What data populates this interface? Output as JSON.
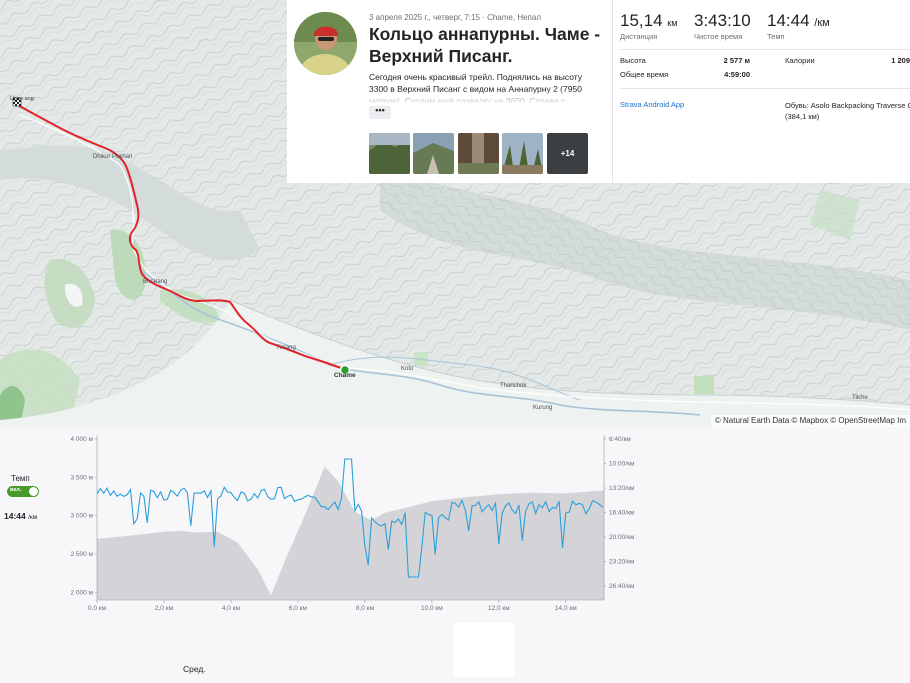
{
  "map": {
    "attribution": "© Natural Earth Data © Mapbox © OpenStreetMap Im",
    "places": [
      "Dhikur Pokhari",
      "Bhratang",
      "Thanchok",
      "Kurung",
      "Koto",
      "Chame",
      "Tilche",
      "Timang"
    ],
    "start_label": "Uppe   ang",
    "end_label": "Chame",
    "route_color": "#e3232c",
    "end_marker_color": "#2ca02c"
  },
  "activity": {
    "meta": "3 апреля 2025 г., четверг, 7:15 · Chame, Непал",
    "title": "Кольцо аннапурны. Чаме - Верхний Писанг.",
    "description": "Сегодня очень красивый трейл. Поднялись на высоту 3300 в Верхний Писанг с видом на Аннапурну 2 (7950 метров). Сходим ещё разведку на 3600. Справа с",
    "more_button": "•••",
    "photos_more": "+14"
  },
  "stats": {
    "distance_value": "15,14",
    "distance_unit": "км",
    "distance_label": "Дистанция",
    "moving_time_value": "3:43:10",
    "moving_time_label": "Чистое время",
    "pace_value": "14:44",
    "pace_unit": "/км",
    "pace_label": "Темп",
    "elevation_label": "Высота",
    "elevation_value": "2 577 м",
    "calories_label": "Калории",
    "calories_value": "1 209",
    "elapsed_label": "Общее время",
    "elapsed_value": "4:59:00",
    "device": "Strava Android App",
    "shoes": "Обувь: Asolo Backpacking Traverse G (384,1 км)"
  },
  "chart_controls": {
    "pace_toggle_label": "Темп",
    "toggle_state": "вкл.",
    "pace_readout": "14:44",
    "pace_readout_unit": "/км",
    "avg_label": "Сред."
  },
  "chart_data": {
    "type": "area",
    "x_unit": "км",
    "x_ticks": [
      "0,0 км",
      "2,0 км",
      "4,0 км",
      "6,0 км",
      "8,0 км",
      "10,0 км",
      "12,0 км",
      "14,0 км"
    ],
    "xlim": [
      0,
      15.14
    ],
    "y_left_ticks": [
      "4 000 м",
      "3 500 м",
      "3 000 м",
      "2 500 м",
      "2 000 м"
    ],
    "ylim_elevation": [
      1900,
      4000
    ],
    "y_right_ticks": [
      "6:40/км",
      "10:00/км",
      "13:20/км",
      "16:40/км",
      "20:00/км",
      "23:20/км",
      "26:40/км"
    ],
    "elevation_series": {
      "color": "#d4d4d8",
      "x": [
        0,
        1,
        2,
        2.5,
        3,
        3.6,
        4.2,
        4.8,
        5.2,
        5.6,
        6.2,
        6.8,
        7.2,
        7.7,
        8.2,
        8.6,
        9.2,
        10,
        11,
        12,
        13,
        14,
        15.14
      ],
      "values": [
        2700,
        2740,
        2790,
        2800,
        2780,
        2790,
        2650,
        2300,
        1960,
        2400,
        3000,
        3640,
        3450,
        3050,
        2940,
        3040,
        3100,
        3190,
        3240,
        3280,
        3300,
        3290,
        3330
      ]
    },
    "pace_series": {
      "color": "#2b9fd8",
      "x_step": 0.1
    }
  }
}
